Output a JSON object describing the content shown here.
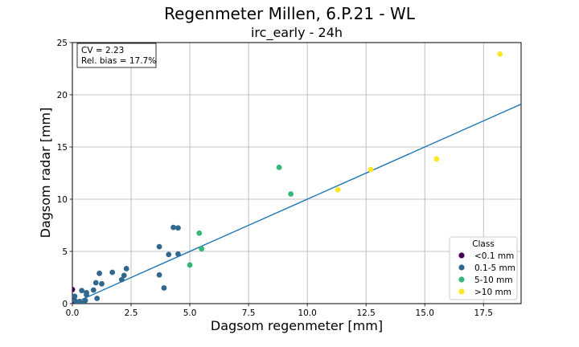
{
  "chart_data": {
    "type": "scatter",
    "title": "Regenmeter Millen, 6.P.21 - WL",
    "subtitle": "irc_early - 24h",
    "xlabel": "Dagsom regenmeter [mm]",
    "ylabel": "Dagsom radar [mm]",
    "xlim": [
      0,
      19.1
    ],
    "ylim": [
      0,
      25
    ],
    "x_ticks": [
      "0.0",
      "2.5",
      "5.0",
      "7.5",
      "10.0",
      "12.5",
      "15.0",
      "17.5"
    ],
    "y_ticks": [
      "0",
      "5",
      "10",
      "15",
      "20",
      "25"
    ],
    "x_tick_values": [
      0,
      2.5,
      5,
      7.5,
      10,
      12.5,
      15,
      17.5
    ],
    "y_tick_values": [
      0,
      5,
      10,
      15,
      20,
      25
    ],
    "grid": true,
    "stats": {
      "cv": "CV = 2.23",
      "bias": "Rel. bias = 17.7%"
    },
    "fit_line": {
      "slope": 1.0,
      "intercept": 0
    },
    "legend": {
      "title": "Class",
      "position": "bottom-right"
    },
    "series": [
      {
        "name": "<0.1 mm",
        "color": "#440154",
        "points": [
          [
            0.0,
            1.35
          ],
          [
            0.0,
            0.4
          ],
          [
            0.0,
            0.0
          ],
          [
            0.05,
            0.1
          ]
        ]
      },
      {
        "name": "0.1-5 mm",
        "color": "#31688e",
        "points": [
          [
            0.1,
            0.7
          ],
          [
            0.1,
            0.3
          ],
          [
            0.2,
            0.1
          ],
          [
            0.25,
            0.0
          ],
          [
            0.3,
            0.2
          ],
          [
            0.4,
            1.25
          ],
          [
            0.45,
            0.05
          ],
          [
            0.5,
            0.1
          ],
          [
            0.55,
            0.3
          ],
          [
            0.6,
            0.85
          ],
          [
            0.6,
            1.05
          ],
          [
            0.9,
            1.3
          ],
          [
            1.0,
            2.0
          ],
          [
            1.05,
            0.5
          ],
          [
            1.15,
            2.9
          ],
          [
            1.25,
            1.9
          ],
          [
            1.7,
            3.0
          ],
          [
            2.1,
            2.3
          ],
          [
            2.2,
            2.7
          ],
          [
            2.3,
            3.35
          ],
          [
            3.7,
            2.75
          ],
          [
            3.7,
            5.45
          ],
          [
            3.9,
            1.5
          ],
          [
            4.1,
            4.7
          ],
          [
            4.3,
            7.3
          ],
          [
            4.5,
            7.25
          ],
          [
            4.5,
            4.75
          ]
        ]
      },
      {
        "name": "5-10 mm",
        "color": "#35b779",
        "points": [
          [
            5.0,
            3.7
          ],
          [
            5.4,
            6.75
          ],
          [
            5.5,
            5.25
          ],
          [
            8.8,
            13.05
          ],
          [
            9.3,
            10.5
          ]
        ]
      },
      {
        "name": ">10 mm",
        "color": "#fde725",
        "points": [
          [
            11.3,
            10.9
          ],
          [
            12.7,
            12.85
          ],
          [
            15.5,
            13.85
          ],
          [
            18.2,
            23.9
          ]
        ]
      }
    ]
  }
}
